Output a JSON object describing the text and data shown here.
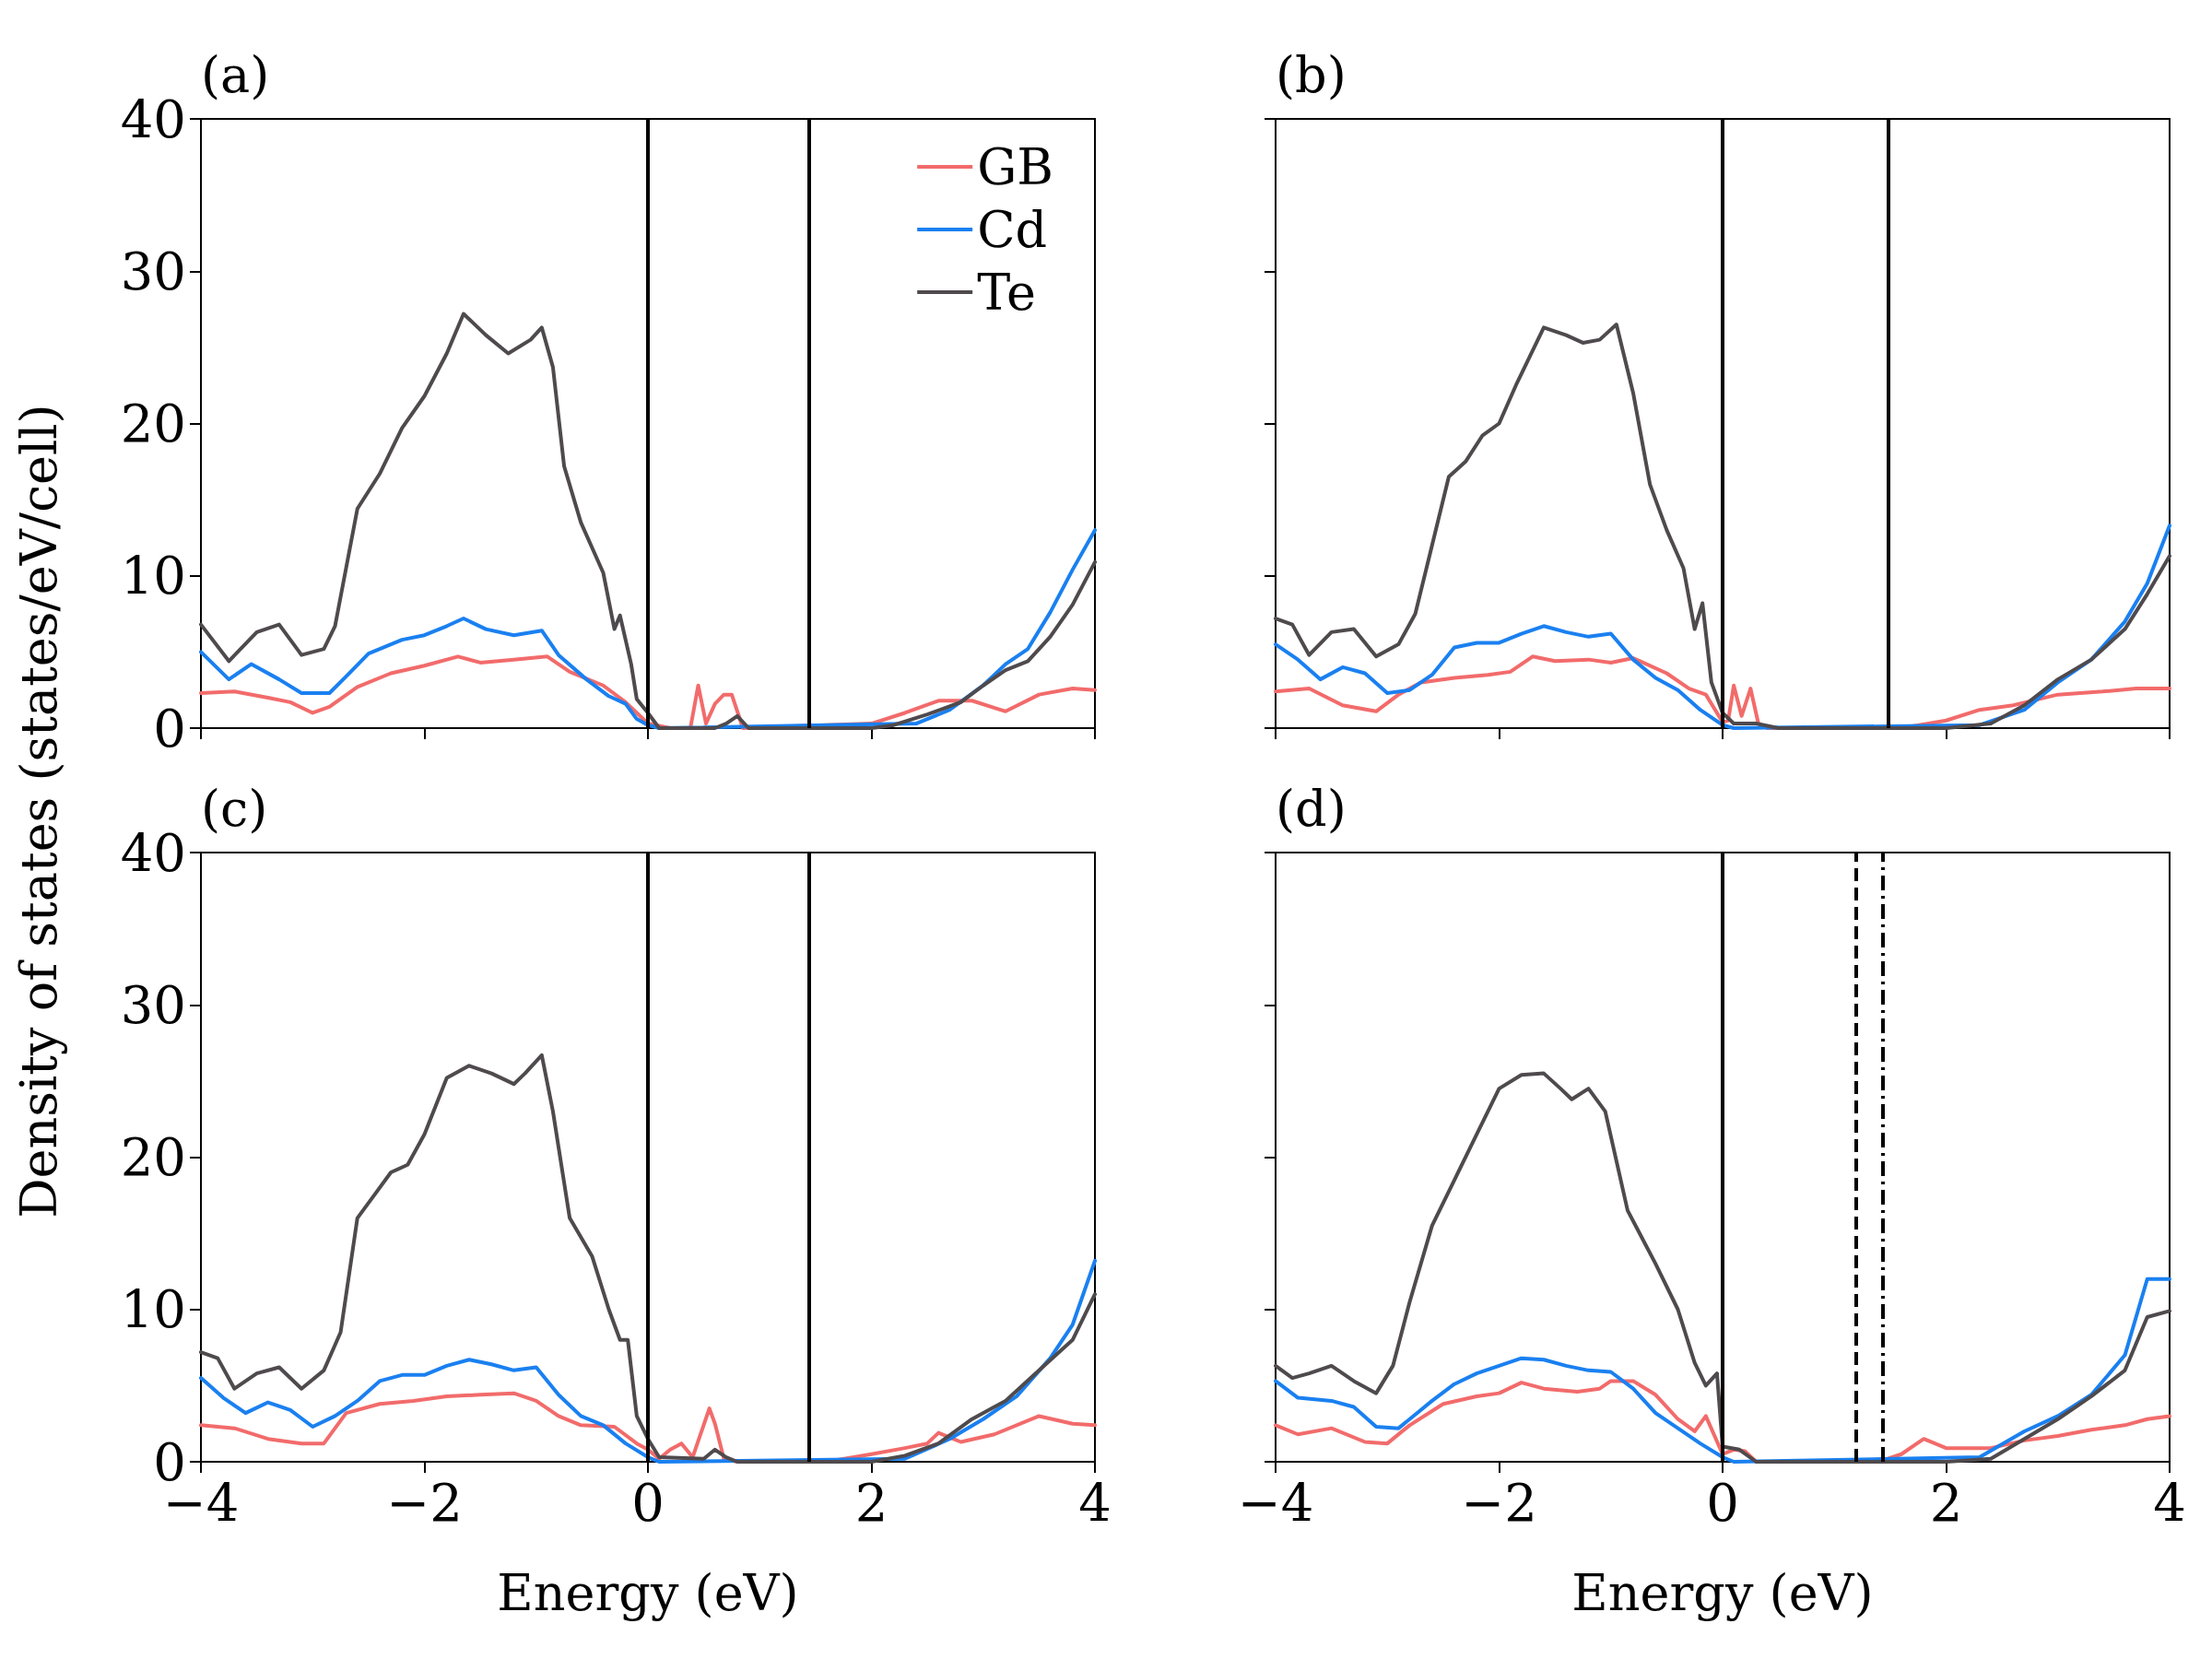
{
  "chart_data": [
    {
      "type": "line",
      "title": "(a)",
      "ylabel": "Density of states (states/eV/cell)",
      "xlim": [
        -4,
        4
      ],
      "ylim": [
        0,
        40
      ],
      "xticks": [
        -4,
        -2,
        0,
        2,
        4
      ],
      "yticks": [
        0,
        10,
        20,
        30,
        40
      ],
      "tick_labels": "y",
      "legend": "top right",
      "grid": false,
      "ref_lines": [
        {
          "axis": "x",
          "value": 0,
          "color": "#000000",
          "line_style": "solid"
        },
        {
          "axis": "x",
          "value": 1.44,
          "color": "#000000",
          "line_style": "solid"
        }
      ],
      "series": [
        {
          "name": "GB",
          "color": "#f26b6b",
          "x": [
            -4,
            -3.7,
            -3.4,
            -3.2,
            -3,
            -2.85,
            -2.6,
            -2.3,
            -2,
            -1.7,
            -1.5,
            -1.2,
            -0.9,
            -0.7,
            -0.4,
            -0.2,
            0,
            0.2,
            0.38,
            0.45,
            0.52,
            0.6,
            0.68,
            0.75,
            0.85,
            2,
            2.3,
            2.6,
            2.9,
            3.2,
            3.5,
            3.8,
            4
          ],
          "values": [
            2.3,
            2.4,
            2,
            1.7,
            1,
            1.4,
            2.7,
            3.6,
            4.1,
            4.7,
            4.3,
            4.5,
            4.7,
            3.7,
            2.8,
            1.7,
            0.3,
            0,
            0,
            2.8,
            0.3,
            1.6,
            2.2,
            2.2,
            0,
            0.3,
            1,
            1.8,
            1.8,
            1.1,
            2.2,
            2.6,
            2.5
          ]
        },
        {
          "name": "Cd",
          "color": "#1a80f0",
          "x": [
            -4,
            -3.75,
            -3.55,
            -3.3,
            -3.1,
            -2.85,
            -2.7,
            -2.5,
            -2.2,
            -2,
            -1.8,
            -1.65,
            -1.45,
            -1.2,
            -0.95,
            -0.8,
            -0.55,
            -0.35,
            -0.2,
            -0.1,
            0,
            0.1,
            2.4,
            2.7,
            3,
            3.2,
            3.4,
            3.6,
            3.8,
            4
          ],
          "values": [
            5,
            3.2,
            4.2,
            3.2,
            2.3,
            2.3,
            3.4,
            4.9,
            5.8,
            6.1,
            6.7,
            7.2,
            6.5,
            6.1,
            6.4,
            4.8,
            3.2,
            2.1,
            1.6,
            0.6,
            0.2,
            0,
            0.3,
            1.2,
            2.8,
            4.2,
            5.2,
            7.6,
            10.4,
            13
          ]
        },
        {
          "name": "Te",
          "color": "#4f4a4d",
          "x": [
            -4,
            -3.75,
            -3.5,
            -3.3,
            -3.1,
            -2.9,
            -2.8,
            -2.6,
            -2.4,
            -2.2,
            -2,
            -1.8,
            -1.65,
            -1.45,
            -1.25,
            -1.05,
            -0.95,
            -0.85,
            -0.75,
            -0.6,
            -0.4,
            -0.3,
            -0.25,
            -0.15,
            -0.1,
            0,
            0.1,
            0.6,
            0.7,
            0.8,
            0.9,
            2,
            2.2,
            2.5,
            2.8,
            3,
            3.2,
            3.4,
            3.6,
            3.8,
            4
          ],
          "values": [
            6.8,
            4.4,
            6.3,
            6.8,
            4.8,
            5.2,
            6.7,
            14.4,
            16.7,
            19.7,
            21.8,
            24.6,
            27.2,
            25.8,
            24.6,
            25.5,
            26.3,
            23.7,
            17.2,
            13.5,
            10.2,
            6.5,
            7.4,
            4.2,
            1.9,
            1,
            0,
            0,
            0.3,
            0.8,
            0,
            0,
            0.2,
            0.9,
            1.7,
            2.8,
            3.8,
            4.4,
            6,
            8.1,
            10.9
          ]
        }
      ]
    },
    {
      "type": "line",
      "title": "(b)",
      "xlim": [
        -4,
        4
      ],
      "ylim": [
        0,
        40
      ],
      "xticks": [
        -4,
        -2,
        0,
        2,
        4
      ],
      "yticks": [
        0,
        10,
        20,
        30,
        40
      ],
      "tick_labels": false,
      "grid": false,
      "ref_lines": [
        {
          "axis": "x",
          "value": 0,
          "color": "#000000",
          "line_style": "solid"
        },
        {
          "axis": "x",
          "value": 1.48,
          "color": "#000000",
          "line_style": "solid"
        }
      ],
      "series": [
        {
          "color": "#f26b6b",
          "x": [
            -4,
            -3.7,
            -3.4,
            -3.1,
            -2.9,
            -2.7,
            -2.4,
            -2.1,
            -1.9,
            -1.7,
            -1.5,
            -1.2,
            -1,
            -0.8,
            -0.5,
            -0.3,
            -0.15,
            0,
            0.05,
            0.1,
            0.17,
            0.25,
            0.32,
            0.4,
            1.6,
            2,
            2.3,
            2.6,
            3,
            3.4,
            3.7,
            4
          ],
          "values": [
            2.4,
            2.6,
            1.5,
            1.1,
            2.2,
            3,
            3.3,
            3.5,
            3.7,
            4.7,
            4.4,
            4.5,
            4.3,
            4.6,
            3.6,
            2.6,
            2.2,
            0.4,
            0.5,
            2.8,
            0.8,
            2.6,
            0.3,
            0,
            0,
            0.5,
            1.2,
            1.5,
            2.2,
            2.4,
            2.6,
            2.6
          ]
        },
        {
          "color": "#1a80f0",
          "x": [
            -4,
            -3.8,
            -3.6,
            -3.4,
            -3.2,
            -3,
            -2.8,
            -2.6,
            -2.4,
            -2.2,
            -2,
            -1.8,
            -1.6,
            -1.4,
            -1.2,
            -1,
            -0.8,
            -0.6,
            -0.4,
            -0.2,
            0,
            0.1,
            2.3,
            2.7,
            3,
            3.3,
            3.6,
            3.8,
            4
          ],
          "values": [
            5.5,
            4.5,
            3.2,
            4,
            3.6,
            2.3,
            2.5,
            3.5,
            5.3,
            5.6,
            5.6,
            6.2,
            6.7,
            6.3,
            6,
            6.2,
            4.5,
            3.3,
            2.5,
            1.2,
            0.2,
            0,
            0.2,
            1.2,
            3,
            4.5,
            7,
            9.5,
            13.3
          ]
        },
        {
          "color": "#4f4a4d",
          "x": [
            -4,
            -3.85,
            -3.7,
            -3.5,
            -3.3,
            -3.1,
            -2.9,
            -2.75,
            -2.6,
            -2.45,
            -2.3,
            -2.15,
            -2,
            -1.85,
            -1.6,
            -1.4,
            -1.25,
            -1.1,
            -0.95,
            -0.8,
            -0.65,
            -0.5,
            -0.35,
            -0.25,
            -0.18,
            -0.1,
            0,
            0.1,
            0.3,
            0.5,
            2,
            2.4,
            2.7,
            3,
            3.3,
            3.6,
            3.8,
            4
          ],
          "values": [
            7.2,
            6.8,
            4.8,
            6.3,
            6.5,
            4.7,
            5.5,
            7.5,
            12,
            16.5,
            17.5,
            19.2,
            20,
            22.5,
            26.3,
            25.8,
            25.3,
            25.5,
            26.5,
            22,
            16,
            13,
            10.5,
            6.5,
            8.2,
            3,
            1,
            0.3,
            0.3,
            0,
            0,
            0.3,
            1.5,
            3.2,
            4.5,
            6.5,
            8.8,
            11.3
          ]
        }
      ]
    },
    {
      "type": "line",
      "title": "(c)",
      "xlabel": "Energy (eV)",
      "xlim": [
        -4,
        4
      ],
      "ylim": [
        0,
        40
      ],
      "xticks": [
        -4,
        -2,
        0,
        2,
        4
      ],
      "yticks": [
        0,
        10,
        20,
        30,
        40
      ],
      "grid": false,
      "ref_lines": [
        {
          "axis": "x",
          "value": 0,
          "color": "#000000",
          "line_style": "solid"
        },
        {
          "axis": "x",
          "value": 1.44,
          "color": "#000000",
          "line_style": "solid"
        }
      ],
      "series": [
        {
          "color": "#f26b6b",
          "x": [
            -4,
            -3.7,
            -3.4,
            -3.1,
            -2.9,
            -2.7,
            -2.4,
            -2.1,
            -1.8,
            -1.5,
            -1.2,
            -1,
            -0.8,
            -0.6,
            -0.3,
            -0.1,
            0,
            0.1,
            0.2,
            0.3,
            0.4,
            0.55,
            0.6,
            0.68,
            0.8,
            1.6,
            2,
            2.3,
            2.5,
            2.6,
            2.8,
            3.1,
            3.5,
            3.8,
            4
          ],
          "values": [
            2.4,
            2.2,
            1.5,
            1.2,
            1.2,
            3.2,
            3.8,
            4,
            4.3,
            4.4,
            4.5,
            4,
            3,
            2.4,
            2.3,
            1.2,
            0.8,
            0.2,
            0.8,
            1.2,
            0.3,
            3.5,
            2.5,
            0.2,
            0,
            0,
            0.5,
            0.9,
            1.2,
            1.9,
            1.3,
            1.8,
            3,
            2.5,
            2.4
          ]
        },
        {
          "color": "#1a80f0",
          "x": [
            -4,
            -3.8,
            -3.6,
            -3.4,
            -3.2,
            -3,
            -2.8,
            -2.6,
            -2.4,
            -2.2,
            -2,
            -1.8,
            -1.6,
            -1.4,
            -1.2,
            -1,
            -0.8,
            -0.6,
            -0.4,
            -0.2,
            0,
            0.1,
            2.3,
            2.7,
            3,
            3.3,
            3.6,
            3.8,
            4
          ],
          "values": [
            5.5,
            4.2,
            3.2,
            3.9,
            3.4,
            2.3,
            3,
            4,
            5.3,
            5.7,
            5.7,
            6.3,
            6.7,
            6.4,
            6,
            6.2,
            4.4,
            3,
            2.4,
            1.2,
            0.3,
            0,
            0.2,
            1.5,
            2.8,
            4.3,
            6.8,
            9,
            13.2
          ]
        },
        {
          "color": "#4f4a4d",
          "x": [
            -4,
            -3.85,
            -3.7,
            -3.5,
            -3.3,
            -3.1,
            -2.9,
            -2.75,
            -2.6,
            -2.45,
            -2.3,
            -2.15,
            -2,
            -1.8,
            -1.6,
            -1.4,
            -1.2,
            -1.1,
            -0.95,
            -0.85,
            -0.7,
            -0.5,
            -0.35,
            -0.25,
            -0.18,
            -0.1,
            0,
            0.1,
            0.5,
            0.6,
            0.7,
            0.8,
            2,
            2.3,
            2.6,
            2.9,
            3.2,
            3.5,
            3.8,
            4
          ],
          "values": [
            7.2,
            6.8,
            4.8,
            5.8,
            6.2,
            4.8,
            6,
            8.5,
            16,
            17.5,
            19,
            19.5,
            21.5,
            25.2,
            26,
            25.5,
            24.8,
            25.5,
            26.7,
            23,
            16,
            13.5,
            10,
            8,
            8,
            3,
            1.5,
            0.3,
            0.2,
            0.8,
            0.3,
            0,
            0,
            0.4,
            1.2,
            2.8,
            4,
            6,
            8,
            11
          ]
        }
      ]
    },
    {
      "type": "line",
      "title": "(d)",
      "xlabel": "Energy (eV)",
      "xlim": [
        -4,
        4
      ],
      "ylim": [
        0,
        40
      ],
      "xticks": [
        -4,
        -2,
        0,
        2,
        4
      ],
      "yticks": [
        0,
        10,
        20,
        30,
        40
      ],
      "tick_labels": "x",
      "grid": false,
      "ref_lines": [
        {
          "axis": "x",
          "value": 0,
          "color": "#000000",
          "line_style": "solid"
        },
        {
          "axis": "x",
          "value": 1.19,
          "color": "#000000",
          "line_style": "dashed"
        },
        {
          "axis": "x",
          "value": 1.43,
          "color": "#000000",
          "line_style": "dashdot"
        }
      ],
      "series": [
        {
          "color": "#f26b6b",
          "x": [
            -4,
            -3.8,
            -3.5,
            -3.2,
            -3,
            -2.8,
            -2.5,
            -2.2,
            -2,
            -1.8,
            -1.6,
            -1.3,
            -1.1,
            -1,
            -0.8,
            -0.6,
            -0.4,
            -0.25,
            -0.15,
            0,
            0.1,
            0.2,
            0.3,
            1.4,
            1.6,
            1.8,
            2,
            2.4,
            2.7,
            3,
            3.3,
            3.6,
            3.8,
            4
          ],
          "values": [
            2.4,
            1.8,
            2.2,
            1.3,
            1.2,
            2.4,
            3.8,
            4.3,
            4.5,
            5.2,
            4.8,
            4.6,
            4.8,
            5.3,
            5.3,
            4.4,
            2.8,
            2,
            3,
            0.5,
            0.8,
            0.7,
            0,
            0,
            0.5,
            1.5,
            0.9,
            0.9,
            1.4,
            1.7,
            2.1,
            2.4,
            2.8,
            3
          ]
        },
        {
          "color": "#1a80f0",
          "x": [
            -4,
            -3.8,
            -3.5,
            -3.3,
            -3.1,
            -2.9,
            -2.6,
            -2.4,
            -2.2,
            -2,
            -1.8,
            -1.6,
            -1.4,
            -1.2,
            -1,
            -0.8,
            -0.6,
            -0.4,
            -0.2,
            0,
            0.1,
            2.3,
            2.7,
            3,
            3.3,
            3.6,
            3.8,
            4
          ],
          "values": [
            5.3,
            4.2,
            4,
            3.6,
            2.3,
            2.2,
            4,
            5.1,
            5.8,
            6.3,
            6.8,
            6.7,
            6.3,
            6,
            5.9,
            4.8,
            3.2,
            2.2,
            1.2,
            0.3,
            0,
            0.3,
            2,
            3,
            4.4,
            7,
            12,
            12
          ]
        },
        {
          "color": "#4f4a4d",
          "x": [
            -4,
            -3.85,
            -3.7,
            -3.5,
            -3.3,
            -3.1,
            -2.95,
            -2.8,
            -2.6,
            -2.4,
            -2.2,
            -2,
            -1.8,
            -1.6,
            -1.45,
            -1.35,
            -1.2,
            -1.05,
            -0.85,
            -0.6,
            -0.4,
            -0.25,
            -0.15,
            -0.05,
            0,
            0.15,
            0.3,
            2,
            2.4,
            2.7,
            3,
            3.3,
            3.6,
            3.8,
            4
          ],
          "values": [
            6.3,
            5.5,
            5.8,
            6.3,
            5.3,
            4.5,
            6.3,
            10.5,
            15.5,
            18.5,
            21.5,
            24.5,
            25.4,
            25.5,
            24.5,
            23.8,
            24.5,
            23,
            16.5,
            13,
            10,
            6.5,
            5,
            5.8,
            1,
            0.8,
            0,
            0,
            0.2,
            1.5,
            2.8,
            4.3,
            6,
            9.5,
            9.9
          ]
        }
      ]
    }
  ]
}
